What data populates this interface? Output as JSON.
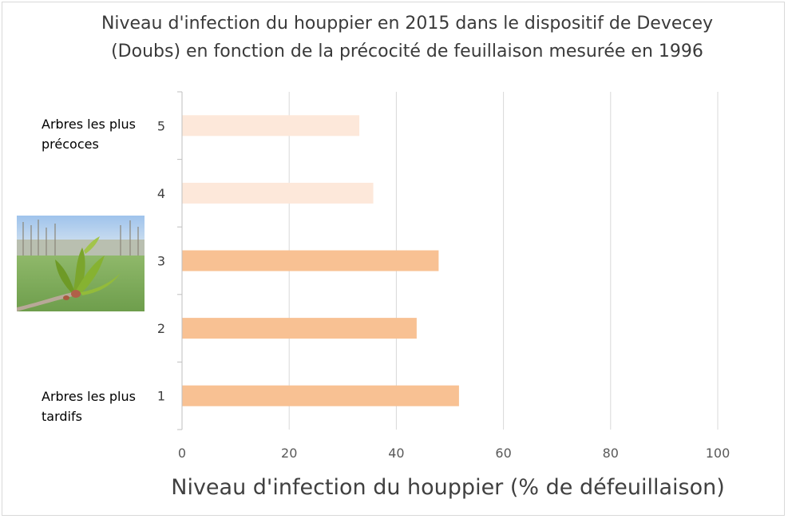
{
  "chart_data": {
    "type": "bar",
    "orientation": "horizontal",
    "title": "Niveau d'infection du houppier en 2015 dans le dispositif de Devecey (Doubs) en fonction de la précocité de feuillaison mesurée en 1996",
    "xlabel": "Niveau d'infection du houppier (% de défeuillaison)",
    "ylabel": "",
    "categories": [
      "1",
      "2",
      "3",
      "4",
      "5"
    ],
    "values": [
      51.7,
      43.8,
      47.9,
      35.7,
      33.1
    ],
    "colors": [
      "#f8c193",
      "#f8c193",
      "#f8c193",
      "#fde8da",
      "#fde8da"
    ],
    "xlim": [
      0,
      100
    ],
    "xticks": [
      "0",
      "20",
      "40",
      "60",
      "80",
      "100"
    ],
    "xtick_values": [
      0,
      20,
      40,
      60,
      80,
      100
    ],
    "grid": true,
    "legend": "none",
    "annotations": {
      "top": "Arbres les plus précoces",
      "bottom": "Arbres les plus tardifs"
    }
  },
  "photo": {
    "icon": "leaf-budburst-photo"
  }
}
